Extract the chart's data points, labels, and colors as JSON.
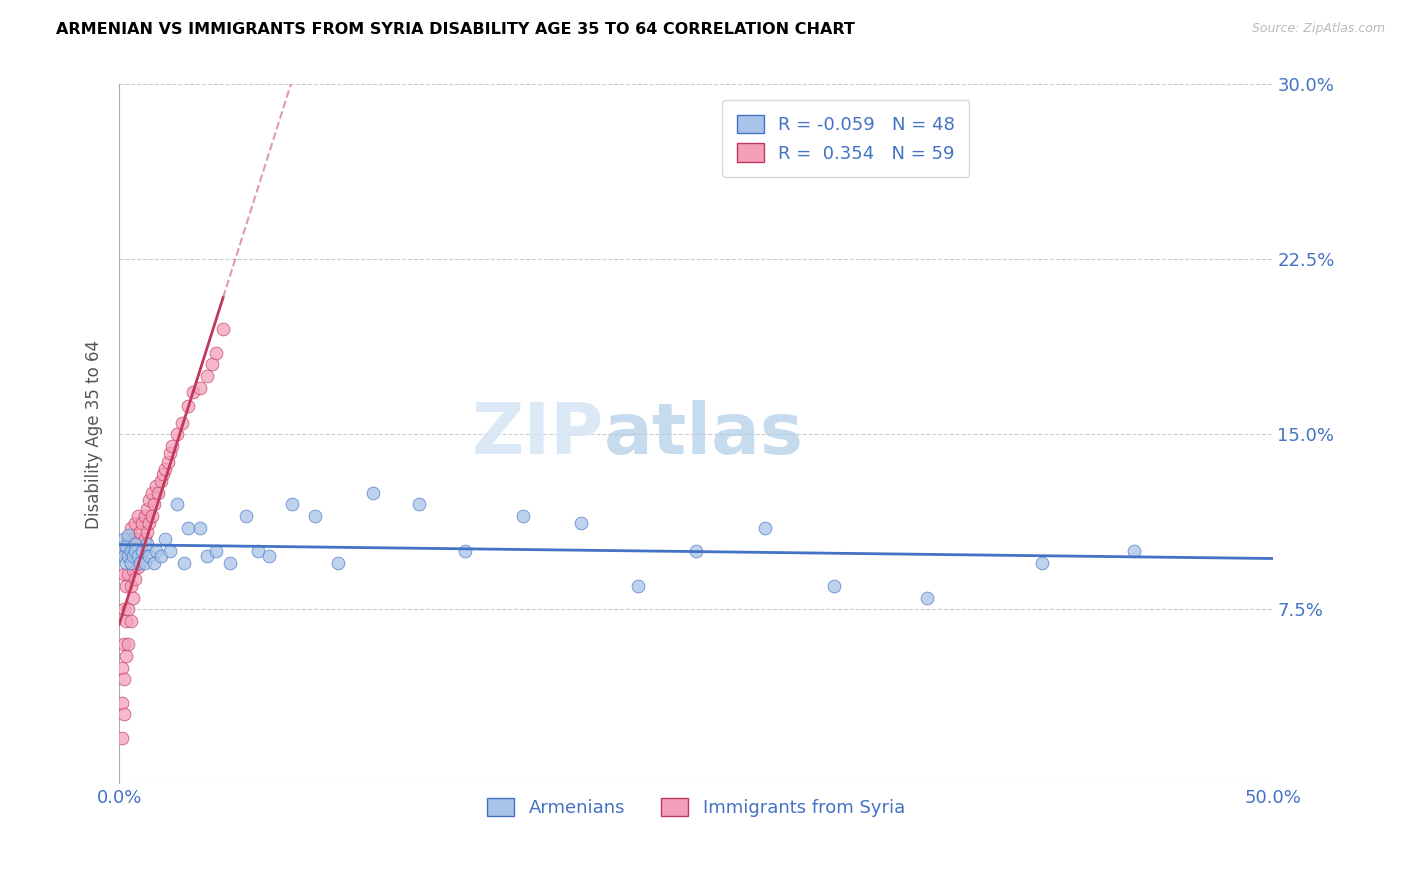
{
  "title": "ARMENIAN VS IMMIGRANTS FROM SYRIA DISABILITY AGE 35 TO 64 CORRELATION CHART",
  "source": "Source: ZipAtlas.com",
  "ylabel": "Disability Age 35 to 64",
  "xlim": [
    0.0,
    0.5
  ],
  "ylim": [
    0.0,
    0.3
  ],
  "xticks": [
    0.0,
    0.1,
    0.2,
    0.3,
    0.4,
    0.5
  ],
  "yticks": [
    0.0,
    0.075,
    0.15,
    0.225,
    0.3
  ],
  "xticklabels": [
    "0.0%",
    "",
    "",
    "",
    "",
    "50.0%"
  ],
  "yticklabels": [
    "",
    "7.5%",
    "15.0%",
    "22.5%",
    "30.0%"
  ],
  "legend_armenians": "Armenians",
  "legend_syria": "Immigrants from Syria",
  "r_armenians": -0.059,
  "n_armenians": 48,
  "r_syria": 0.354,
  "n_syria": 59,
  "color_armenians": "#a8c4e8",
  "color_syria": "#f4a0bb",
  "trendline_armenians_color": "#4472c4",
  "trendline_syria_color": "#c0385a",
  "watermark_zip": "ZIP",
  "watermark_atlas": "atlas",
  "armenians_x": [
    0.001,
    0.002,
    0.002,
    0.003,
    0.003,
    0.004,
    0.004,
    0.005,
    0.005,
    0.006,
    0.007,
    0.007,
    0.008,
    0.009,
    0.01,
    0.011,
    0.012,
    0.013,
    0.015,
    0.016,
    0.018,
    0.02,
    0.022,
    0.025,
    0.028,
    0.03,
    0.035,
    0.038,
    0.042,
    0.048,
    0.055,
    0.06,
    0.065,
    0.075,
    0.085,
    0.095,
    0.11,
    0.13,
    0.15,
    0.175,
    0.2,
    0.225,
    0.25,
    0.28,
    0.31,
    0.35,
    0.4,
    0.44
  ],
  "armenians_y": [
    0.1,
    0.098,
    0.105,
    0.095,
    0.102,
    0.098,
    0.107,
    0.095,
    0.1,
    0.098,
    0.103,
    0.1,
    0.098,
    0.095,
    0.1,
    0.095,
    0.103,
    0.098,
    0.095,
    0.1,
    0.098,
    0.105,
    0.1,
    0.12,
    0.095,
    0.11,
    0.11,
    0.098,
    0.1,
    0.095,
    0.115,
    0.1,
    0.098,
    0.12,
    0.115,
    0.095,
    0.125,
    0.12,
    0.1,
    0.115,
    0.112,
    0.085,
    0.1,
    0.11,
    0.085,
    0.08,
    0.095,
    0.1
  ],
  "syria_x": [
    0.001,
    0.001,
    0.001,
    0.002,
    0.002,
    0.002,
    0.002,
    0.002,
    0.003,
    0.003,
    0.003,
    0.003,
    0.004,
    0.004,
    0.004,
    0.004,
    0.005,
    0.005,
    0.005,
    0.005,
    0.006,
    0.006,
    0.006,
    0.007,
    0.007,
    0.007,
    0.008,
    0.008,
    0.008,
    0.009,
    0.009,
    0.01,
    0.01,
    0.011,
    0.011,
    0.012,
    0.012,
    0.013,
    0.013,
    0.014,
    0.014,
    0.015,
    0.016,
    0.017,
    0.018,
    0.019,
    0.02,
    0.021,
    0.022,
    0.023,
    0.025,
    0.027,
    0.03,
    0.032,
    0.035,
    0.038,
    0.04,
    0.042,
    0.045
  ],
  "syria_y": [
    0.02,
    0.035,
    0.05,
    0.03,
    0.045,
    0.06,
    0.075,
    0.09,
    0.055,
    0.07,
    0.085,
    0.1,
    0.06,
    0.075,
    0.09,
    0.105,
    0.07,
    0.085,
    0.1,
    0.11,
    0.08,
    0.092,
    0.105,
    0.088,
    0.1,
    0.112,
    0.093,
    0.105,
    0.115,
    0.098,
    0.108,
    0.1,
    0.112,
    0.105,
    0.115,
    0.108,
    0.118,
    0.112,
    0.122,
    0.115,
    0.125,
    0.12,
    0.128,
    0.125,
    0.13,
    0.133,
    0.135,
    0.138,
    0.142,
    0.145,
    0.15,
    0.155,
    0.162,
    0.168,
    0.17,
    0.175,
    0.18,
    0.185,
    0.195
  ]
}
